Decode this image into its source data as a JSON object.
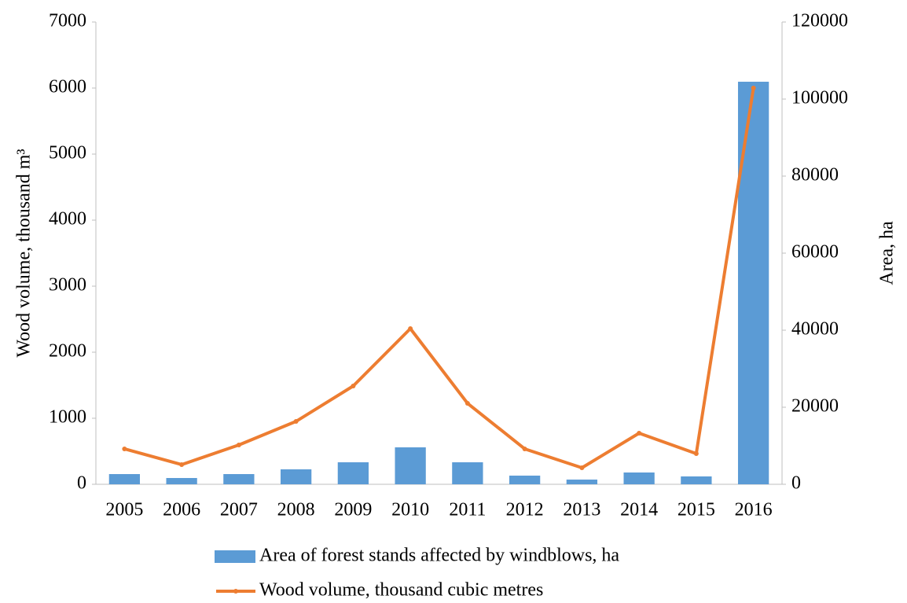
{
  "chart_data": {
    "type": "bar-line",
    "categories": [
      "2005",
      "2006",
      "2007",
      "2008",
      "2009",
      "2010",
      "2011",
      "2012",
      "2013",
      "2014",
      "2015",
      "2016"
    ],
    "series": [
      {
        "name": "Area of forest stands affected by windblows, ha",
        "type": "bar",
        "axis": "y2",
        "color": "#5b9bd5",
        "values": [
          2650,
          1630,
          2650,
          3880,
          5710,
          9590,
          5710,
          2250,
          1220,
          3060,
          2040,
          104500
        ]
      },
      {
        "name": "Wood volume, thousand cubic metres",
        "type": "line",
        "axis": "y",
        "color": "#ed7d31",
        "values": [
          536,
          298,
          595,
          952,
          1488,
          2357,
          1226,
          536,
          250,
          774,
          464,
          6000
        ]
      }
    ],
    "ylabel": "Wood volume, thousand m³",
    "y2label": "Area, ha",
    "ylim": [
      0,
      7000
    ],
    "yticks": [
      0,
      1000,
      2000,
      3000,
      4000,
      5000,
      6000,
      7000
    ],
    "y2lim": [
      0,
      120000
    ],
    "y2ticks": [
      0,
      20000,
      40000,
      60000,
      80000,
      100000,
      120000
    ],
    "legend": "bottom"
  }
}
